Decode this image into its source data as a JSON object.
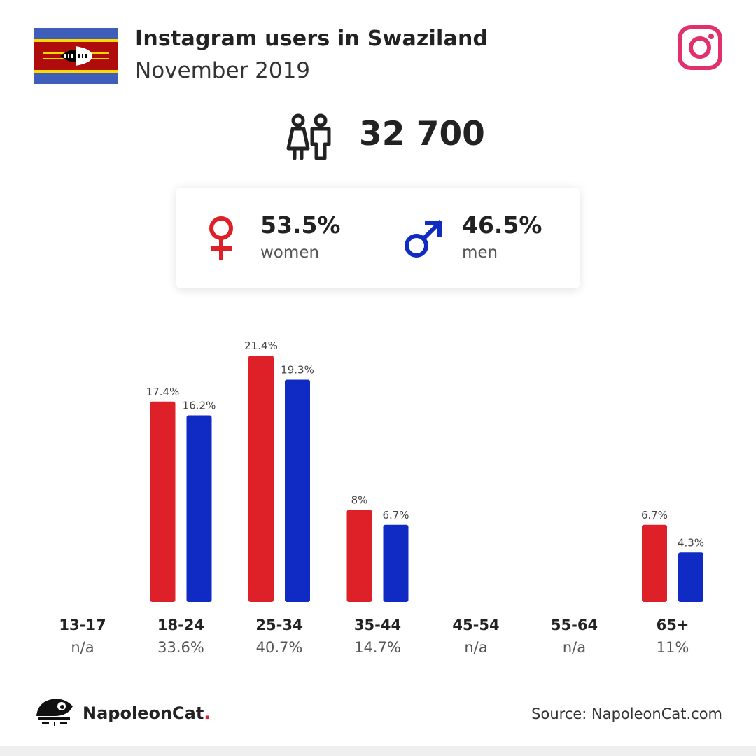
{
  "header": {
    "title": "Instagram users in Swaziland",
    "subtitle": "November 2019"
  },
  "icons": {
    "flag": "swaziland-flag-icon",
    "platform": "instagram-icon",
    "users": "users-icon",
    "female": "female-symbol-icon",
    "male": "male-symbol-icon",
    "brand": "napoleoncat-icon"
  },
  "colors": {
    "women": "#de2028",
    "men": "#0f2bc4",
    "instagram": "#e1306c"
  },
  "total": {
    "value": "32 700"
  },
  "gender": {
    "women": {
      "pct": "53.5%",
      "label": "women"
    },
    "men": {
      "pct": "46.5%",
      "label": "men"
    }
  },
  "chart_data": {
    "type": "bar",
    "categories": [
      "13-17",
      "18-24",
      "25-34",
      "35-44",
      "45-54",
      "55-64",
      "65+"
    ],
    "category_totals": [
      "n/a",
      "33.6%",
      "40.7%",
      "14.7%",
      "n/a",
      "n/a",
      "11%"
    ],
    "series": [
      {
        "name": "women",
        "values": [
          null,
          17.4,
          21.4,
          8,
          null,
          null,
          6.7
        ],
        "labels": [
          "",
          "17.4%",
          "21.4%",
          "8%",
          "",
          "",
          "6.7%"
        ]
      },
      {
        "name": "men",
        "values": [
          null,
          16.2,
          19.3,
          6.7,
          null,
          null,
          4.3
        ],
        "labels": [
          "",
          "16.2%",
          "19.3%",
          "6.7%",
          "",
          "",
          "4.3%"
        ]
      }
    ],
    "ylim": [
      0,
      21.4
    ]
  },
  "footer": {
    "brand": "NapoleonCat",
    "brand_dot": ".",
    "source": "Source: NapoleonCat.com"
  }
}
